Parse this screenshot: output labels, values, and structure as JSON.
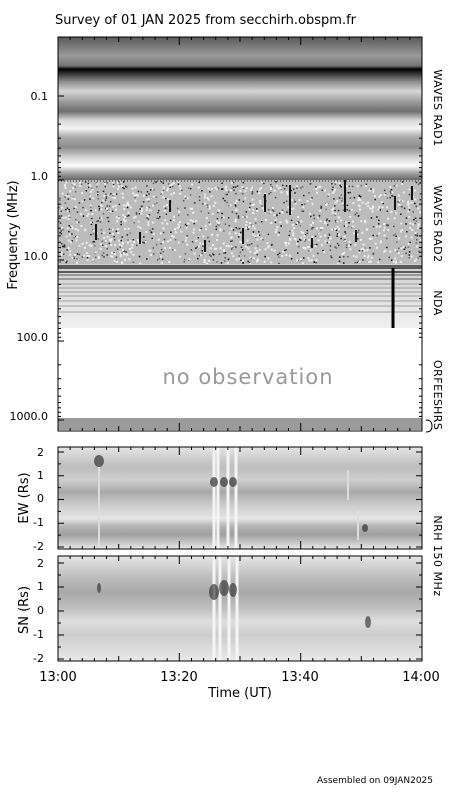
{
  "title": "Survey of 01 JAN 2025 from secchirh.obspm.fr",
  "footer": "Assembled on 09JAN2025",
  "chart_data": [
    {
      "type": "heatmap",
      "name": "dynamic spectrum",
      "ylabel": "Frequency (MHz)",
      "yscale": "log",
      "y_inverted": true,
      "y_ticks": [
        "0.1",
        "1.0",
        "10.0",
        "100.0",
        "1000.0"
      ],
      "instruments": [
        "WAVES RAD1",
        "WAVES RAD2",
        "NDA",
        "ORFEES",
        "HRS"
      ],
      "annotation": "no observation",
      "colormap": "grayscale"
    },
    {
      "type": "heatmap",
      "name": "NRH EW",
      "ylabel": "EW (Rs)",
      "ylim": [
        -2,
        2
      ],
      "y_ticks": [
        "2",
        "1",
        "0",
        "-1",
        "-2"
      ]
    },
    {
      "type": "heatmap",
      "name": "NRH SN",
      "ylabel": "SN (Rs)",
      "ylim": [
        -2,
        2
      ],
      "y_ticks": [
        "2",
        "1",
        "0",
        "-1",
        "-2"
      ]
    }
  ],
  "nrh_label": "NRH 150 MHz",
  "xaxis": {
    "label": "Time (UT)",
    "ticks": [
      "13:00",
      "13:20",
      "13:40",
      "14:00"
    ]
  }
}
